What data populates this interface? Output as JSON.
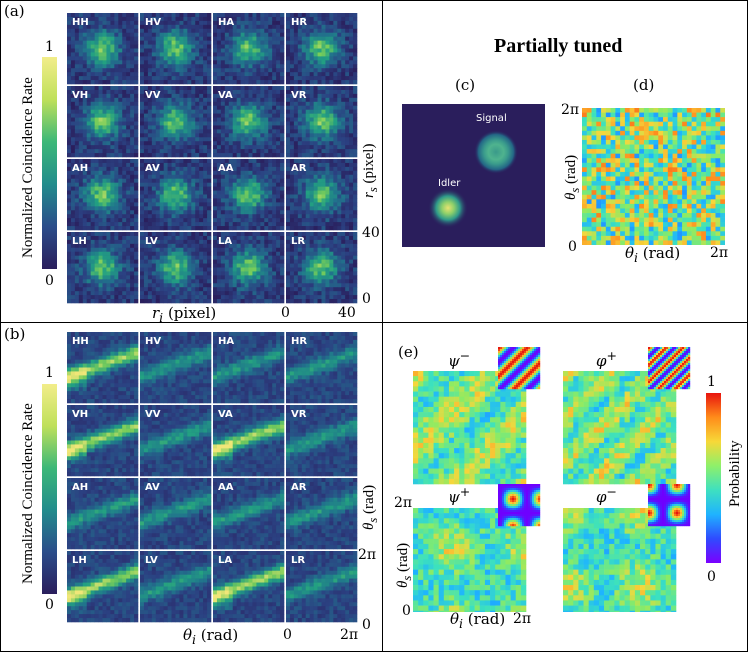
{
  "panel_a": {
    "label": "(a)",
    "colorbar": {
      "max_label": "1",
      "min_label": "0",
      "title": "Normalized Coincidence Rate"
    },
    "tiles": [
      "HH",
      "HV",
      "HA",
      "HR",
      "VH",
      "VV",
      "VA",
      "VR",
      "AH",
      "AV",
      "AA",
      "AR",
      "LH",
      "LV",
      "LA",
      "LR"
    ],
    "x_axis": {
      "label_var": "r",
      "label_sub": "i",
      "label_unit": " (pixel)",
      "tick_min": "0",
      "tick_max": "40"
    },
    "y_axis": {
      "label_var": "r",
      "label_sub": "s",
      "label_unit": " (pixel)",
      "tick_min": "0",
      "tick_max": "40"
    }
  },
  "panel_b": {
    "label": "(b)",
    "colorbar": {
      "max_label": "1",
      "min_label": "0",
      "title": "Normalized Coincidence Rate"
    },
    "tiles": [
      "HH",
      "HV",
      "HA",
      "HR",
      "VH",
      "VV",
      "VA",
      "VR",
      "AH",
      "AV",
      "AA",
      "AR",
      "LH",
      "LV",
      "LA",
      "LR"
    ],
    "x_axis": {
      "label_var": "θ",
      "label_sub": "i",
      "label_unit": " (rad)",
      "tick_min": "0",
      "tick_max": "2π"
    },
    "y_axis": {
      "label_var": "θ",
      "label_sub": "s",
      "label_unit": " (rad)",
      "tick_min": "0",
      "tick_max": "2π"
    }
  },
  "panel_right_top": {
    "title": "Partially tuned",
    "c": {
      "label": "(c)",
      "signal_label": "Signal",
      "idler_label": "Idler"
    },
    "d": {
      "label": "(d)",
      "y_tick_top": "2π",
      "y_tick_bottom": "0",
      "y_var": "θ",
      "y_sub": "s",
      "y_unit": " (rad)",
      "x_var": "θ",
      "x_sub": "i",
      "x_unit": " (rad)",
      "x_tick_max": "2π"
    }
  },
  "panel_e": {
    "label": "(e)",
    "states": [
      {
        "name": "ψ",
        "sup": "−"
      },
      {
        "name": "φ",
        "sup": "+"
      },
      {
        "name": "ψ",
        "sup": "+"
      },
      {
        "name": "φ",
        "sup": "−"
      }
    ],
    "y_tick_top": "2π",
    "y_tick_bottom": "0",
    "y_var": "θ",
    "y_sub": "s",
    "y_unit": " (rad)",
    "x_var": "θ",
    "x_sub": "i",
    "x_unit": " (rad)",
    "x_tick_max": "2π",
    "colorbar": {
      "max_label": "1",
      "min_label": "0",
      "title": "Probability"
    }
  },
  "colors": {
    "viridis_dark": "#2a1e5c",
    "panel_bg": "#1e3a5f",
    "separator": "#000000"
  }
}
